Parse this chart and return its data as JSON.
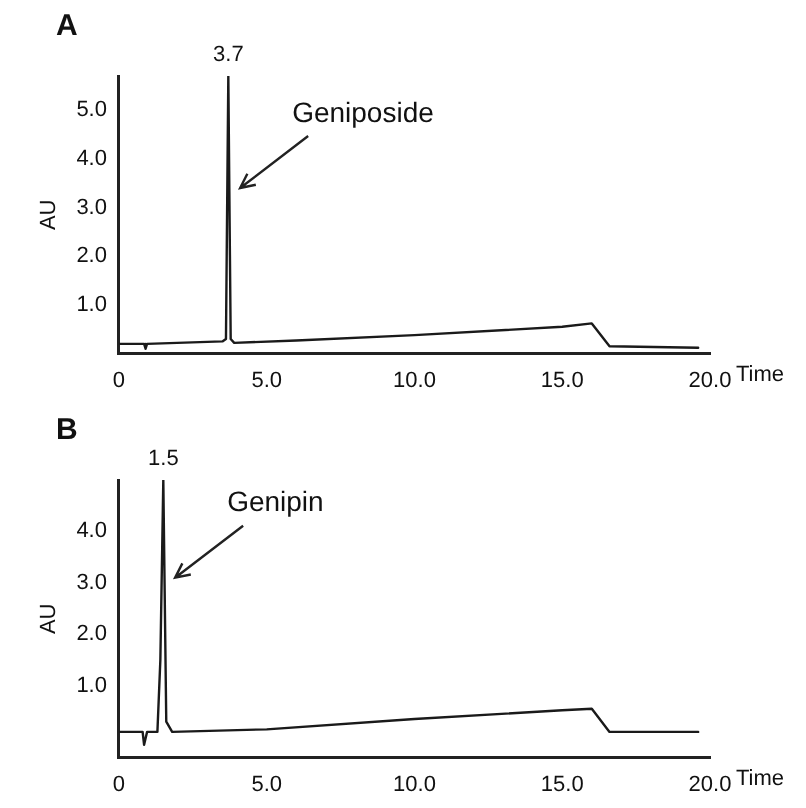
{
  "chart_data": [
    {
      "type": "line",
      "title": "A",
      "xlabel": "Time",
      "ylabel": "AU",
      "xlim": [
        0,
        20
      ],
      "ylim": [
        0,
        5.7
      ],
      "xticks": [
        0,
        {
          "value": 5,
          "label": "5.0"
        },
        {
          "value": 10,
          "label": "10.0"
        },
        {
          "value": 15,
          "label": "15.0"
        },
        {
          "value": 20,
          "label": "20.0"
        }
      ],
      "yticks": [
        {
          "value": 1,
          "label": "1.0"
        },
        {
          "value": 2,
          "label": "2.0"
        },
        {
          "value": 3,
          "label": "3.0"
        },
        {
          "value": 4,
          "label": "4.0"
        },
        {
          "value": 5,
          "label": "5.0"
        }
      ],
      "series": [
        {
          "color": "#1a1a1a",
          "x": [
            0,
            0.85,
            0.9,
            0.95,
            3.5,
            3.62,
            3.7,
            3.78,
            3.9,
            6,
            10,
            15,
            16,
            16.6,
            19.6
          ],
          "values": [
            0.2,
            0.2,
            0.1,
            0.2,
            0.25,
            0.3,
            5.7,
            0.3,
            0.22,
            0.27,
            0.38,
            0.55,
            0.62,
            0.15,
            0.12
          ]
        }
      ],
      "annotations": [
        {
          "text": "3.7",
          "x": 3.7,
          "y": 5.7
        },
        {
          "text": "Geniposide",
          "x": 4.1,
          "y": 3.4
        }
      ],
      "grid": false,
      "legend": false,
      "marker": "none",
      "line_style": "solid"
    },
    {
      "type": "line",
      "title": "B",
      "xlabel": "Time",
      "ylabel": "AU",
      "xlim": [
        0,
        20
      ],
      "ylim": [
        -0.4,
        5
      ],
      "xticks": [
        0,
        {
          "value": 5,
          "label": "5.0"
        },
        {
          "value": 10,
          "label": "10.0"
        },
        {
          "value": 15,
          "label": "15.0"
        },
        {
          "value": 20,
          "label": "20.0"
        }
      ],
      "yticks": [
        {
          "value": 1,
          "label": "1.0"
        },
        {
          "value": 2,
          "label": "2.0"
        },
        {
          "value": 3,
          "label": "3.0"
        },
        {
          "value": 4,
          "label": "4.0"
        }
      ],
      "series": [
        {
          "color": "#1a1a1a",
          "x": [
            0,
            0.8,
            0.85,
            0.95,
            1.3,
            1.4,
            1.5,
            1.6,
            1.8,
            5,
            10,
            15,
            16,
            16.6,
            19.6
          ],
          "values": [
            0.1,
            0.1,
            -0.15,
            0.1,
            0.1,
            1.5,
            5,
            0.3,
            0.1,
            0.15,
            0.35,
            0.52,
            0.55,
            0.1,
            0.1
          ]
        }
      ],
      "annotations": [
        {
          "text": "1.5",
          "x": 1.5,
          "y": 5
        },
        {
          "text": "Genipin",
          "x": 1.9,
          "y": 3.1
        }
      ],
      "grid": false,
      "legend": false,
      "marker": "none",
      "line_style": "solid"
    }
  ]
}
